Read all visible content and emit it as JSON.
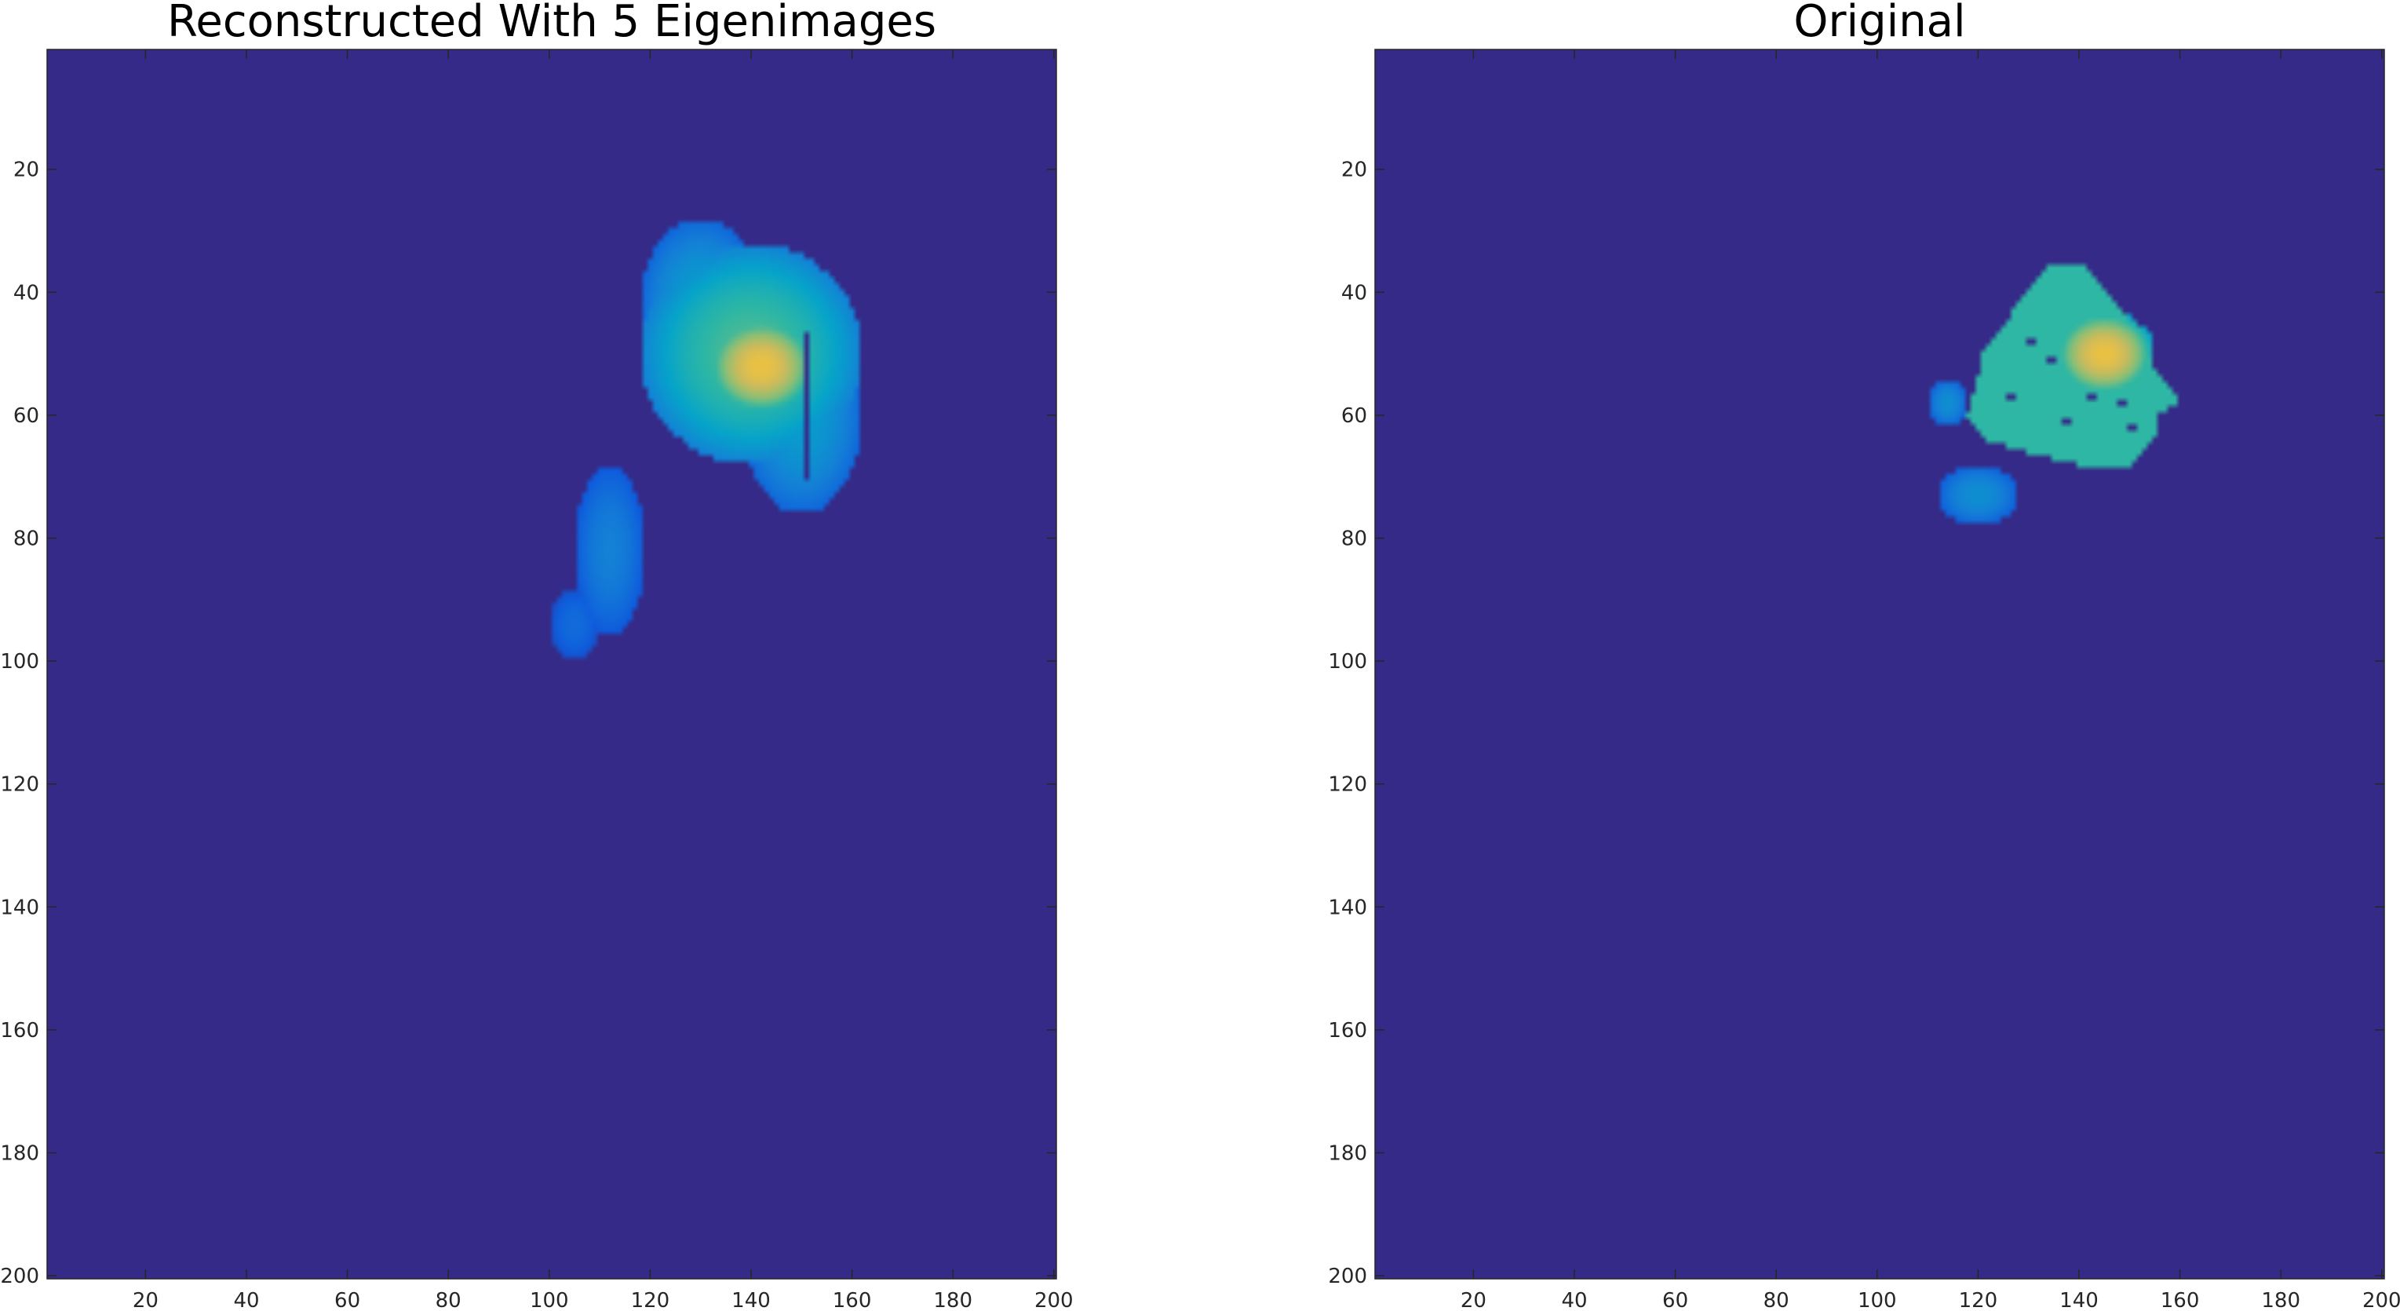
{
  "colors": {
    "background": "#ffffff",
    "image_base": "#352a87",
    "colormap": [
      "#352a87",
      "#0f5cdd",
      "#1481d6",
      "#06a4ca",
      "#2eb7a4",
      "#87bf77",
      "#d1bb59",
      "#fec832",
      "#f9fb0e"
    ],
    "axis": "#262626"
  },
  "chart_data": [
    {
      "type": "heatmap",
      "title": "Reconstructed With 5 Eigenimages",
      "xlim": [
        0.5,
        200.5
      ],
      "ylim": [
        0.5,
        200.5
      ],
      "y_reversed": true,
      "xticks": [
        20,
        40,
        60,
        80,
        100,
        120,
        140,
        160,
        180,
        200
      ],
      "yticks": [
        20,
        40,
        60,
        80,
        100,
        120,
        140,
        160,
        180,
        200
      ],
      "xlabel": "",
      "ylabel": "",
      "grid": false,
      "colormap": "parula",
      "clim": [
        0,
        1
      ],
      "features": [
        {
          "shape": "blob",
          "cx": 140,
          "cy": 50,
          "rx": 22,
          "ry": 18,
          "value": 0.55
        },
        {
          "shape": "blob",
          "cx": 142,
          "cy": 52,
          "rx": 11,
          "ry": 8,
          "value": 0.82
        },
        {
          "shape": "blob",
          "cx": 130,
          "cy": 42,
          "rx": 12,
          "ry": 14,
          "value": 0.35
        },
        {
          "shape": "blob",
          "cx": 150,
          "cy": 60,
          "rx": 12,
          "ry": 16,
          "value": 0.35
        },
        {
          "shape": "blob",
          "cx": 112,
          "cy": 82,
          "rx": 7,
          "ry": 14,
          "value": 0.25
        },
        {
          "shape": "blob",
          "cx": 105,
          "cy": 94,
          "rx": 5,
          "ry": 6,
          "value": 0.18
        },
        {
          "shape": "dark_line",
          "x": 151,
          "y0": 47,
          "y1": 70
        },
        {
          "shape": "dark_line",
          "x": 120,
          "y0": 63,
          "y1": 69
        }
      ]
    },
    {
      "type": "heatmap",
      "title": "Original",
      "xlim": [
        0.5,
        200.5
      ],
      "ylim": [
        0.5,
        200.5
      ],
      "y_reversed": true,
      "xticks": [
        20,
        40,
        60,
        80,
        100,
        120,
        140,
        160,
        180,
        200
      ],
      "yticks": [
        20,
        40,
        60,
        80,
        100,
        120,
        140,
        160,
        180,
        200
      ],
      "xlabel": "",
      "ylabel": "",
      "grid": false,
      "colormap": "parula",
      "clim": [
        0,
        1
      ],
      "features": [
        {
          "shape": "polygon",
          "points": [
            [
              135,
              35
            ],
            [
              142,
              36
            ],
            [
              150,
              45
            ],
            [
              155,
              52
            ],
            [
              160,
              58
            ],
            [
              156,
              60
            ],
            [
              155,
              64
            ],
            [
              150,
              69
            ],
            [
              140,
              68
            ],
            [
              130,
              66
            ],
            [
              122,
              64
            ],
            [
              118,
              60
            ],
            [
              121,
              50
            ],
            [
              127,
              43
            ]
          ],
          "value": 0.5
        },
        {
          "shape": "blob",
          "cx": 145,
          "cy": 50,
          "rx": 10,
          "ry": 7,
          "value": 0.82
        },
        {
          "shape": "blob",
          "cx": 120,
          "cy": 73,
          "rx": 8,
          "ry": 5,
          "value": 0.3
        },
        {
          "shape": "blob",
          "cx": 114,
          "cy": 58,
          "rx": 4,
          "ry": 4,
          "value": 0.3
        },
        {
          "shape": "hole",
          "cx": 130,
          "cy": 48
        },
        {
          "shape": "hole",
          "cx": 134,
          "cy": 51
        },
        {
          "shape": "hole",
          "cx": 142,
          "cy": 57
        },
        {
          "shape": "hole",
          "cx": 148,
          "cy": 58
        },
        {
          "shape": "hole",
          "cx": 125,
          "cy": 43
        },
        {
          "shape": "hole",
          "cx": 126,
          "cy": 57
        },
        {
          "shape": "hole",
          "cx": 150,
          "cy": 62
        },
        {
          "shape": "hole",
          "cx": 137,
          "cy": 61
        }
      ]
    }
  ]
}
